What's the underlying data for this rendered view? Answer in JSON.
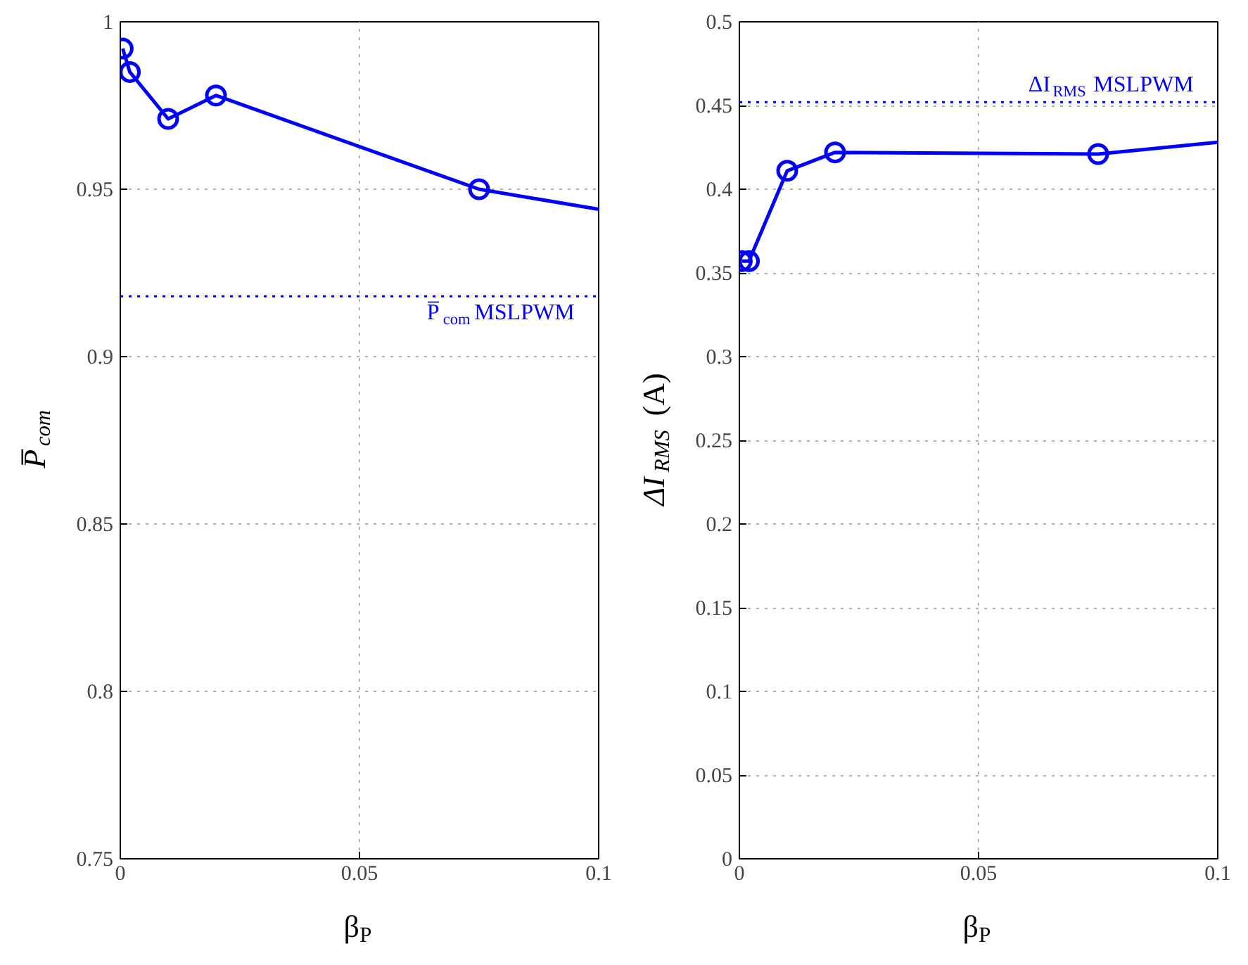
{
  "chart_data": [
    {
      "type": "line",
      "xlabel": "β$_{P}$",
      "ylabel": "P̅$_{com}$",
      "xlim": [
        0,
        0.1
      ],
      "ylim": [
        0.75,
        1.0
      ],
      "xticks": [
        0,
        0.05,
        0.1
      ],
      "yticks": [
        0.75,
        0.8,
        0.85,
        0.9,
        0.95,
        1
      ],
      "grid": true,
      "line_style": "solid",
      "series": [
        {
          "type": "line",
          "color": "#0000ff",
          "marker": "none",
          "x": [
            0.0005,
            0.002,
            0.01,
            0.02,
            0.075,
            0.1
          ],
          "values": [
            0.992,
            0.985,
            0.971,
            0.978,
            0.95,
            0.944
          ]
        },
        {
          "type": "scatter",
          "color": "#0000ff",
          "marker": "circle",
          "x": [
            0.0005,
            0.002,
            0.01,
            0.02,
            0.075
          ],
          "values": [
            0.992,
            0.985,
            0.971,
            0.978,
            0.95
          ]
        }
      ],
      "ref_lines": [
        {
          "axis": "y",
          "value": 0.918,
          "label": "P̅$_{com}$ MSLPWM",
          "color": "#0000ff",
          "line_style": "dotted"
        }
      ]
    },
    {
      "type": "line",
      "xlabel": "β$_{P}$",
      "ylabel": "ΔI$_{RMS}$ (A)",
      "xlim": [
        0,
        0.1
      ],
      "ylim": [
        0,
        0.5
      ],
      "xticks": [
        0,
        0.05,
        0.1
      ],
      "yticks": [
        0,
        0.05,
        0.1,
        0.15,
        0.2,
        0.25,
        0.3,
        0.35,
        0.4,
        0.45,
        0.5
      ],
      "grid": true,
      "line_style": "solid",
      "series": [
        {
          "type": "line",
          "color": "#0000ff",
          "marker": "none",
          "x": [
            0.0005,
            0.002,
            0.01,
            0.02,
            0.075,
            0.1
          ],
          "values": [
            0.357,
            0.357,
            0.411,
            0.422,
            0.421,
            0.428
          ]
        },
        {
          "type": "scatter",
          "color": "#0000ff",
          "marker": "circle",
          "x": [
            0.0005,
            0.002,
            0.01,
            0.02,
            0.075
          ],
          "values": [
            0.357,
            0.357,
            0.411,
            0.422,
            0.421
          ]
        }
      ],
      "ref_lines": [
        {
          "axis": "y",
          "value": 0.452,
          "label": "ΔI$_{RMS}$ MSLPWM",
          "color": "#0000ff",
          "line_style": "dotted"
        }
      ]
    }
  ]
}
